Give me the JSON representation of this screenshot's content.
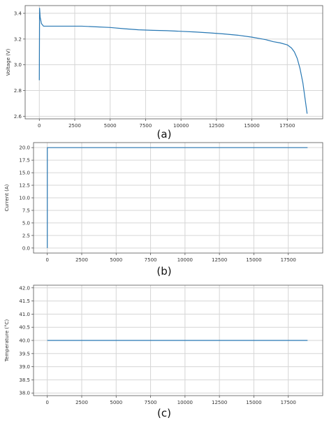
{
  "figure": {
    "panel_labels": [
      "(a)",
      "(b)",
      "(c)"
    ]
  },
  "colors": {
    "series": "#2878b4",
    "grid": "#d6d6d6",
    "axis": "#555555",
    "text": "#333333"
  },
  "chart_data": [
    {
      "type": "line",
      "panel": "(a)",
      "xlabel": "",
      "ylabel": "Voltage (V)",
      "xlim": [
        -1000,
        20000
      ],
      "ylim": [
        2.58,
        3.46
      ],
      "xticks": [
        0,
        2500,
        5000,
        7500,
        10000,
        12500,
        15000,
        17500
      ],
      "xtick_labels": [
        "0",
        "2500",
        "5000",
        "7500",
        "10000",
        "12500",
        "15000",
        "17500"
      ],
      "yticks": [
        2.6,
        2.8,
        3.0,
        3.2,
        3.4
      ],
      "ytick_labels": [
        "2.6",
        "2.8",
        "3.0",
        "3.2",
        "3.4"
      ],
      "grid": true,
      "series": [
        {
          "x": [
            0,
            20,
            60,
            150,
            300,
            1000,
            2000,
            3000,
            4000,
            5000,
            6000,
            7000,
            8000,
            9000,
            10000,
            11000,
            12000,
            13000,
            14000,
            15000,
            15500,
            16000,
            16500,
            17000,
            17500,
            17800,
            18000,
            18200,
            18400,
            18600,
            18800,
            18900
          ],
          "y": [
            2.88,
            3.44,
            3.37,
            3.32,
            3.3,
            3.3,
            3.3,
            3.3,
            3.295,
            3.29,
            3.28,
            3.272,
            3.268,
            3.265,
            3.26,
            3.255,
            3.248,
            3.24,
            3.23,
            3.215,
            3.205,
            3.195,
            3.18,
            3.17,
            3.155,
            3.13,
            3.1,
            3.05,
            2.97,
            2.86,
            2.7,
            2.62
          ]
        }
      ]
    },
    {
      "type": "line",
      "panel": "(b)",
      "xlabel": "",
      "ylabel": "Current (A)",
      "xlim": [
        -1000,
        20000
      ],
      "ylim": [
        -1.0,
        21.0
      ],
      "xticks": [
        0,
        2500,
        5000,
        7500,
        10000,
        12500,
        15000,
        17500
      ],
      "xtick_labels": [
        "0",
        "2500",
        "5000",
        "7500",
        "10000",
        "12500",
        "15000",
        "17500"
      ],
      "yticks": [
        0.0,
        2.5,
        5.0,
        7.5,
        10.0,
        12.5,
        15.0,
        17.5,
        20.0
      ],
      "ytick_labels": [
        "0.0",
        "2.5",
        "5.0",
        "7.5",
        "10.0",
        "12.5",
        "15.0",
        "17.5",
        "20.0"
      ],
      "grid": true,
      "series": [
        {
          "x": [
            0,
            1,
            18900
          ],
          "y": [
            0.0,
            20.0,
            20.0
          ]
        }
      ]
    },
    {
      "type": "line",
      "panel": "(c)",
      "xlabel": "",
      "ylabel": "Temperature (°C)",
      "xlim": [
        -1000,
        20000
      ],
      "ylim": [
        37.9,
        42.1
      ],
      "xticks": [
        0,
        2500,
        5000,
        7500,
        10000,
        12500,
        15000,
        17500
      ],
      "xtick_labels": [
        "0",
        "2500",
        "5000",
        "7500",
        "10000",
        "12500",
        "15000",
        "17500"
      ],
      "yticks": [
        38.0,
        38.5,
        39.0,
        39.5,
        40.0,
        40.5,
        41.0,
        41.5,
        42.0
      ],
      "ytick_labels": [
        "38.0",
        "38.5",
        "39.0",
        "39.5",
        "40.0",
        "40.5",
        "41.0",
        "41.5",
        "42.0"
      ],
      "grid": true,
      "series": [
        {
          "x": [
            0,
            18900
          ],
          "y": [
            40.0,
            40.0
          ]
        }
      ]
    }
  ]
}
